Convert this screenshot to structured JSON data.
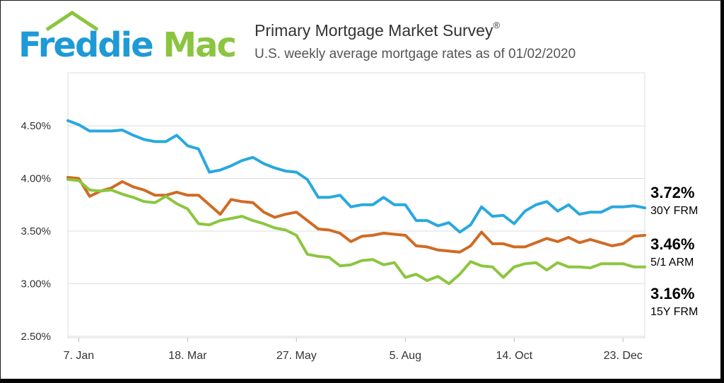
{
  "header": {
    "logo": {
      "part1": "Freddie",
      "part2": "Mac"
    },
    "title": "Primary Mortgage Market Survey",
    "title_mark": "®",
    "subtitle": "U.S. weekly average mortgage rates as of 01/02/2020"
  },
  "colors": {
    "frm30": "#29a8df",
    "arm51": "#d06b24",
    "frm15": "#8cc63f",
    "grid": "#dcdcdc",
    "plot_bg": "#ffffff",
    "brand_blue": "#1e9ad6",
    "brand_green": "#8bc53f"
  },
  "chart_data": {
    "type": "line",
    "title": "Primary Mortgage Market Survey",
    "subtitle": "U.S. weekly average mortgage rates as of 01/02/2020",
    "xlabel": "",
    "ylabel": "",
    "ylim": [
      2.5,
      4.5
    ],
    "yticks": [
      "4.50%",
      "4.00%",
      "3.50%",
      "3.00%",
      "2.50%"
    ],
    "ytick_values": [
      4.5,
      4.0,
      3.5,
      3.0,
      2.5
    ],
    "x_ticks": [
      "7. Jan",
      "18. Mar",
      "27. May",
      "5. Aug",
      "14. Oct",
      "23. Dec"
    ],
    "x_tick_index": [
      1,
      11,
      21,
      31,
      41,
      51
    ],
    "grid": true,
    "legend": "end-of-line labels, right",
    "series": [
      {
        "key": "frm30",
        "name": "30Y FRM",
        "end_value": "3.72%",
        "values": [
          4.55,
          4.51,
          4.45,
          4.45,
          4.45,
          4.46,
          4.41,
          4.37,
          4.35,
          4.35,
          4.41,
          4.31,
          4.28,
          4.06,
          4.08,
          4.12,
          4.17,
          4.2,
          4.14,
          4.1,
          4.07,
          4.06,
          3.99,
          3.82,
          3.82,
          3.84,
          3.73,
          3.75,
          3.75,
          3.82,
          3.75,
          3.75,
          3.6,
          3.6,
          3.55,
          3.58,
          3.49,
          3.56,
          3.73,
          3.64,
          3.65,
          3.57,
          3.69,
          3.75,
          3.78,
          3.69,
          3.75,
          3.66,
          3.68,
          3.68,
          3.73,
          3.73,
          3.74,
          3.72
        ]
      },
      {
        "key": "arm51",
        "name": "5/1 ARM",
        "end_value": "3.46%",
        "values": [
          4.01,
          4.0,
          3.83,
          3.88,
          3.91,
          3.97,
          3.92,
          3.89,
          3.84,
          3.84,
          3.87,
          3.84,
          3.84,
          3.75,
          3.66,
          3.8,
          3.78,
          3.77,
          3.68,
          3.63,
          3.66,
          3.68,
          3.6,
          3.52,
          3.51,
          3.48,
          3.4,
          3.45,
          3.46,
          3.48,
          3.47,
          3.46,
          3.36,
          3.35,
          3.32,
          3.31,
          3.3,
          3.36,
          3.49,
          3.38,
          3.38,
          3.35,
          3.35,
          3.39,
          3.43,
          3.4,
          3.44,
          3.39,
          3.42,
          3.39,
          3.36,
          3.38,
          3.45,
          3.46
        ]
      },
      {
        "key": "frm15",
        "name": "15Y FRM",
        "end_value": "3.16%",
        "values": [
          3.99,
          3.98,
          3.89,
          3.88,
          3.89,
          3.85,
          3.82,
          3.78,
          3.77,
          3.83,
          3.76,
          3.71,
          3.57,
          3.56,
          3.6,
          3.62,
          3.64,
          3.6,
          3.57,
          3.53,
          3.51,
          3.46,
          3.28,
          3.26,
          3.25,
          3.17,
          3.18,
          3.22,
          3.23,
          3.18,
          3.2,
          3.06,
          3.09,
          3.03,
          3.07,
          3.0,
          3.09,
          3.21,
          3.17,
          3.16,
          3.06,
          3.16,
          3.19,
          3.2,
          3.13,
          3.2,
          3.16,
          3.16,
          3.15,
          3.19,
          3.19,
          3.19,
          3.16,
          3.16
        ]
      }
    ]
  }
}
